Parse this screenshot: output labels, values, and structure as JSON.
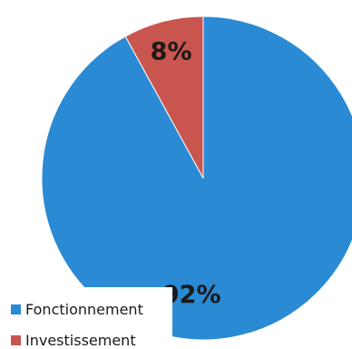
{
  "chart_data": {
    "type": "pie",
    "slices": [
      {
        "label": "Fonctionnement",
        "value": 92,
        "display": "92%",
        "color": "#2a8ad4"
      },
      {
        "label": "Investissement",
        "value": 8,
        "display": "8%",
        "color": "#c9554f"
      }
    ],
    "legend_position": "bottom-left"
  }
}
